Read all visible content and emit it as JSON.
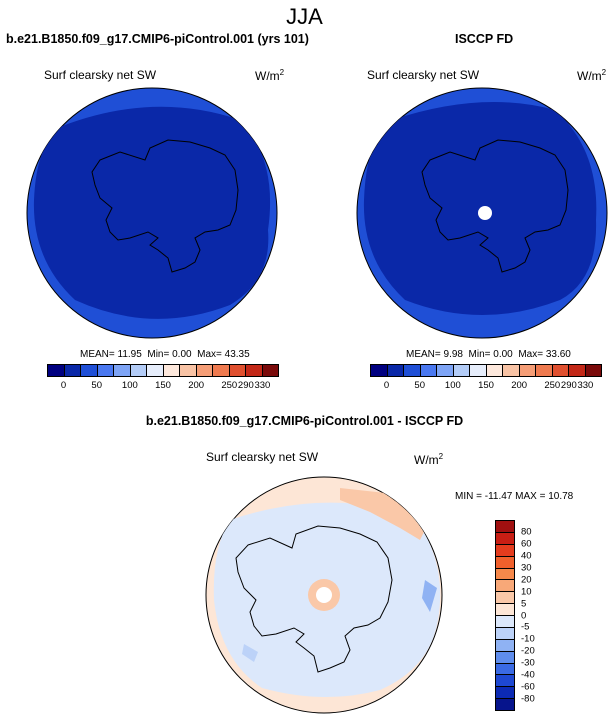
{
  "season": "JJA",
  "panels": [
    {
      "title": "b.e21.B1850.f09_g17.CMIP6-piControl.001 (yrs 101)",
      "variable": "Surf clearsky net SW",
      "units": "W/m",
      "units_sup": "2",
      "stats": {
        "mean": "11.95",
        "min": "0.00",
        "max": "43.35"
      }
    },
    {
      "title": "ISCCP FD",
      "variable": "Surf clearsky net SW",
      "units": "W/m",
      "units_sup": "2",
      "stats": {
        "mean": "9.98",
        "min": "0.00",
        "max": "33.60"
      }
    },
    {
      "title": "b.e21.B1850.f09_g17.CMIP6-piControl.001 - ISCCP FD",
      "variable": "Surf clearsky net SW",
      "units": "W/m",
      "units_sup": "2",
      "stats": {
        "min": "-11.47",
        "max": "10.78"
      }
    }
  ],
  "labels": {
    "mean": "MEAN=",
    "min": "Min=",
    "max": "Max=",
    "diff_min": "MIN =",
    "diff_max": "MAX ="
  },
  "colorbar_abs": {
    "ticks": [
      "0",
      "50",
      "100",
      "150",
      "200",
      "250",
      "290",
      "330"
    ],
    "colors": [
      "#000080",
      "#0a28a8",
      "#1f4fd6",
      "#4a78f0",
      "#7ea4f5",
      "#b3ccf7",
      "#e6edfb",
      "#fde8dc",
      "#f8c3a5",
      "#f59d76",
      "#ef7a4f",
      "#e0502f",
      "#c32818",
      "#7a0a0a"
    ]
  },
  "colorbar_diff": {
    "ticks": [
      "80",
      "60",
      "40",
      "30",
      "20",
      "10",
      "5",
      "0",
      "-5",
      "-10",
      "-20",
      "-30",
      "-40",
      "-60",
      "-80"
    ],
    "colors": [
      "#a01010",
      "#c81e14",
      "#e43c1e",
      "#f0602c",
      "#f6884a",
      "#f8a878",
      "#fac8a8",
      "#fde6d6",
      "#dce8fb",
      "#bcd2f8",
      "#8fb2f3",
      "#5f8ded",
      "#3a6ae4",
      "#1e48d2",
      "#0c2ab4",
      "#06148c"
    ]
  },
  "chart_data": [
    {
      "type": "heatmap",
      "title": "b.e21.B1850.f09_g17.CMIP6-piControl.001 (yrs 101)",
      "region": "Antarctica, south polar stereographic",
      "season": "JJA",
      "variable": "Surf clearsky net SW",
      "units": "W/m^2",
      "mean": 11.95,
      "min": 0.0,
      "max": 43.35,
      "levels": [
        0,
        50,
        100,
        150,
        200,
        250,
        290,
        330
      ]
    },
    {
      "type": "heatmap",
      "title": "ISCCP FD",
      "region": "Antarctica, south polar stereographic",
      "season": "JJA",
      "variable": "Surf clearsky net SW",
      "units": "W/m^2",
      "mean": 9.98,
      "min": 0.0,
      "max": 33.6,
      "levels": [
        0,
        50,
        100,
        150,
        200,
        250,
        290,
        330
      ]
    },
    {
      "type": "heatmap",
      "title": "b.e21.B1850.f09_g17.CMIP6-piControl.001 - ISCCP FD",
      "region": "Antarctica, south polar stereographic",
      "season": "JJA",
      "variable": "Surf clearsky net SW",
      "units": "W/m^2",
      "min": -11.47,
      "max": 10.78,
      "levels": [
        -80,
        -60,
        -40,
        -30,
        -20,
        -10,
        -5,
        0,
        5,
        10,
        20,
        30,
        40,
        60,
        80
      ]
    }
  ]
}
